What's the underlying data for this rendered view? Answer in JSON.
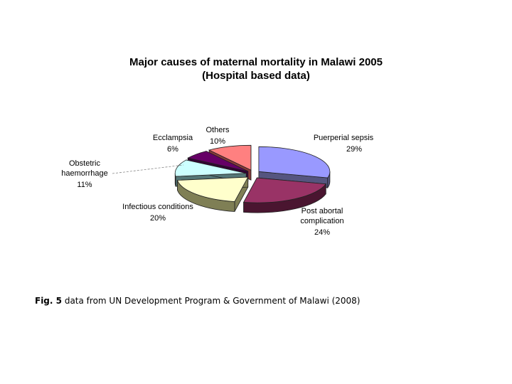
{
  "chart_data": {
    "type": "pie",
    "title": "Major causes of maternal mortality in Malawi 2005",
    "subtitle": "(Hospital based data)",
    "slices": [
      {
        "label": "Puerperial sepsis",
        "value": 29,
        "value_label": "29%",
        "color": "#9999ff",
        "side": "#55557f"
      },
      {
        "label": "Post abortal complication",
        "value": 24,
        "value_label": "24%",
        "color": "#993366",
        "side": "#4a1530"
      },
      {
        "label": "Infectious conditions",
        "value": 20,
        "value_label": "20%",
        "color": "#ffffcc",
        "side": "#7f7f55"
      },
      {
        "label": "Obstetric haemorrhage",
        "value": 11,
        "value_label": "11%",
        "color": "#ccffff",
        "side": "#557777"
      },
      {
        "label": "Ecclampsia",
        "value": 6,
        "value_label": "6%",
        "color": "#660066",
        "side": "#330033"
      },
      {
        "label": "Others",
        "value": 10,
        "value_label": "10%",
        "color": "#ff8080",
        "side": "#8a3a3a"
      }
    ],
    "three_d": true,
    "exploded": true,
    "legend": "none"
  },
  "caption": {
    "fig_label": "Fig. 5",
    "text": "data from UN Development Program & Government of Malawi (2008)"
  }
}
